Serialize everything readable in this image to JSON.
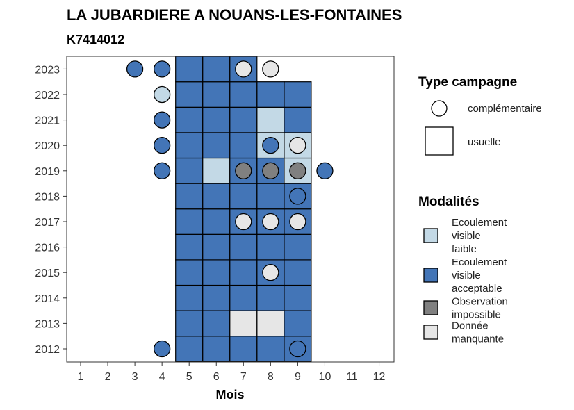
{
  "chart_data": {
    "type": "heatmap",
    "title": "LA JUBARDIERE A NOUANS-LES-FONTAINES",
    "subtitle": "K7414012",
    "xlabel": "Mois",
    "ylabel": "",
    "x_ticks": [
      1,
      2,
      3,
      4,
      5,
      6,
      7,
      8,
      9,
      10,
      11,
      12
    ],
    "y_ticks": [
      2012,
      2013,
      2014,
      2015,
      2016,
      2017,
      2018,
      2019,
      2020,
      2021,
      2022,
      2023
    ],
    "colors": {
      "faible": "#c3d9e6",
      "acceptable": "#4375b7",
      "impossible": "#808080",
      "manquante": "#e6e6e6"
    },
    "usuelle": [
      {
        "year": 2012,
        "values": {
          "5": "acceptable",
          "6": "acceptable",
          "7": "acceptable",
          "8": "acceptable",
          "9": "acceptable"
        }
      },
      {
        "year": 2013,
        "values": {
          "5": "acceptable",
          "6": "acceptable",
          "7": "manquante",
          "8": "manquante",
          "9": "acceptable"
        }
      },
      {
        "year": 2014,
        "values": {
          "5": "acceptable",
          "6": "acceptable",
          "7": "acceptable",
          "8": "acceptable",
          "9": "acceptable"
        }
      },
      {
        "year": 2015,
        "values": {
          "5": "acceptable",
          "6": "acceptable",
          "7": "acceptable",
          "8": "acceptable",
          "9": "acceptable"
        }
      },
      {
        "year": 2016,
        "values": {
          "5": "acceptable",
          "6": "acceptable",
          "7": "acceptable",
          "8": "acceptable",
          "9": "acceptable"
        }
      },
      {
        "year": 2017,
        "values": {
          "5": "acceptable",
          "6": "acceptable",
          "7": "acceptable",
          "8": "acceptable",
          "9": "acceptable"
        }
      },
      {
        "year": 2018,
        "values": {
          "5": "acceptable",
          "6": "acceptable",
          "7": "acceptable",
          "8": "acceptable",
          "9": "acceptable"
        }
      },
      {
        "year": 2019,
        "values": {
          "5": "acceptable",
          "6": "faible",
          "7": "acceptable",
          "8": "acceptable",
          "9": "faible"
        }
      },
      {
        "year": 2020,
        "values": {
          "5": "acceptable",
          "6": "acceptable",
          "7": "acceptable",
          "8": "faible",
          "9": "faible"
        }
      },
      {
        "year": 2021,
        "values": {
          "5": "acceptable",
          "6": "acceptable",
          "7": "acceptable",
          "8": "faible",
          "9": "acceptable"
        }
      },
      {
        "year": 2022,
        "values": {
          "5": "acceptable",
          "6": "acceptable",
          "7": "acceptable",
          "8": "acceptable",
          "9": "acceptable"
        }
      },
      {
        "year": 2023,
        "values": {
          "5": "acceptable",
          "6": "acceptable",
          "7": "acceptable"
        }
      }
    ],
    "complementaire": [
      {
        "year": 2012,
        "month": 4,
        "modalite": "acceptable"
      },
      {
        "year": 2012,
        "month": 9,
        "modalite": "acceptable"
      },
      {
        "year": 2015,
        "month": 8,
        "modalite": "manquante"
      },
      {
        "year": 2017,
        "month": 7,
        "modalite": "manquante"
      },
      {
        "year": 2017,
        "month": 8,
        "modalite": "manquante"
      },
      {
        "year": 2017,
        "month": 9,
        "modalite": "manquante"
      },
      {
        "year": 2018,
        "month": 9,
        "modalite": "acceptable"
      },
      {
        "year": 2019,
        "month": 4,
        "modalite": "acceptable"
      },
      {
        "year": 2019,
        "month": 7,
        "modalite": "impossible"
      },
      {
        "year": 2019,
        "month": 8,
        "modalite": "impossible"
      },
      {
        "year": 2019,
        "month": 9,
        "modalite": "impossible"
      },
      {
        "year": 2019,
        "month": 10,
        "modalite": "acceptable"
      },
      {
        "year": 2020,
        "month": 4,
        "modalite": "acceptable"
      },
      {
        "year": 2020,
        "month": 8,
        "modalite": "acceptable"
      },
      {
        "year": 2020,
        "month": 9,
        "modalite": "manquante"
      },
      {
        "year": 2021,
        "month": 4,
        "modalite": "acceptable"
      },
      {
        "year": 2022,
        "month": 4,
        "modalite": "faible"
      },
      {
        "year": 2023,
        "month": 3,
        "modalite": "acceptable"
      },
      {
        "year": 2023,
        "month": 4,
        "modalite": "acceptable"
      },
      {
        "year": 2023,
        "month": 7,
        "modalite": "manquante"
      },
      {
        "year": 2023,
        "month": 8,
        "modalite": "manquante"
      }
    ],
    "legend_type": {
      "title": "Type campagne",
      "complementaire": "complémentaire",
      "usuelle": "usuelle"
    },
    "legend_modalites": {
      "title": "Modalités",
      "items": [
        {
          "key": "faible",
          "lines": [
            "Ecoulement",
            "visible",
            "faible"
          ]
        },
        {
          "key": "acceptable",
          "lines": [
            "Ecoulement",
            "visible",
            "acceptable"
          ]
        },
        {
          "key": "impossible",
          "lines": [
            "Observation",
            "impossible"
          ]
        },
        {
          "key": "manquante",
          "lines": [
            "Donnée",
            "manquante"
          ]
        }
      ]
    },
    "grid": false,
    "legend_position": "right"
  }
}
